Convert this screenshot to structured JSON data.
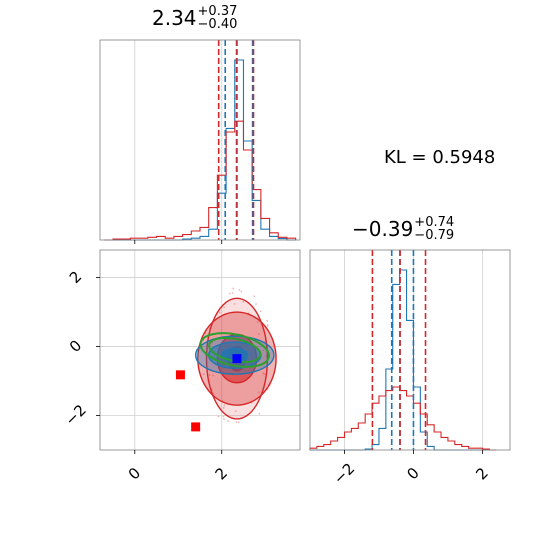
{
  "kl_text": "KL = 0.5948",
  "titles": {
    "p1": {
      "main": "2.34",
      "upper": "+0.37",
      "lower": "−0.40"
    },
    "p2": {
      "main": "−0.39",
      "upper": "+0.74",
      "lower": "−0.79"
    }
  },
  "colors": {
    "blue": "#1f77b4",
    "red": "#d62728",
    "green": "#2ca02c",
    "marker_red": "#ff0000",
    "marker_blue": "#0000ff"
  },
  "chart_data": [
    {
      "type": "histogram",
      "panel": "top-left marginal (parameter 1)",
      "xlim": [
        -0.8,
        3.8
      ],
      "x_ticks": [
        0,
        2
      ],
      "bin_centers": [
        -0.6,
        -0.4,
        -0.2,
        0.0,
        0.2,
        0.4,
        0.6,
        0.8,
        1.0,
        1.2,
        1.4,
        1.6,
        1.8,
        2.0,
        2.2,
        2.4,
        2.6,
        2.8,
        3.0,
        3.2,
        3.4,
        3.6
      ],
      "series": [
        {
          "color": "blue",
          "counts": [
            0,
            0,
            0,
            0,
            0,
            0,
            0,
            0,
            0,
            0.005,
            0.01,
            0.02,
            0.06,
            0.26,
            0.62,
            1.0,
            0.55,
            0.22,
            0.06,
            0.02,
            0.008,
            0
          ]
        },
        {
          "color": "red",
          "counts": [
            0,
            0.005,
            0.005,
            0.01,
            0.01,
            0.015,
            0.02,
            0.01,
            0.02,
            0.03,
            0.05,
            0.07,
            0.18,
            0.36,
            0.6,
            0.66,
            0.5,
            0.28,
            0.12,
            0.04,
            0.015,
            0.01
          ]
        }
      ],
      "quantile_lines": [
        {
          "color": "blue",
          "x": [
            2.08,
            2.34,
            2.71
          ]
        },
        {
          "color": "red",
          "x": [
            1.93,
            2.35,
            2.73
          ]
        }
      ]
    },
    {
      "type": "contour",
      "panel": "bottom-left joint (parameter 1 vs parameter 2)",
      "xlim": [
        -0.8,
        3.8
      ],
      "ylim": [
        -3.0,
        2.8
      ],
      "x_ticks": [
        0,
        2
      ],
      "y_ticks": [
        -2,
        0,
        2
      ],
      "contours": [
        {
          "color": "red",
          "filled": true,
          "cx": 2.35,
          "cy": -0.35,
          "levels": [
            [
              0.7,
              1.75
            ],
            [
              0.9,
              1.35
            ],
            [
              0.45,
              0.7
            ],
            [
              0.2,
              0.35
            ]
          ]
        },
        {
          "color": "blue",
          "filled": true,
          "cx": 2.3,
          "cy": -0.25,
          "levels": [
            [
              0.9,
              0.55
            ],
            [
              0.6,
              0.38
            ],
            [
              0.3,
              0.2
            ]
          ]
        },
        {
          "color": "green",
          "filled": false,
          "cx": 2.3,
          "cy": -0.1,
          "levels": [
            [
              0.8,
              0.45
            ],
            [
              0.6,
              0.32
            ]
          ]
        }
      ],
      "points": [
        {
          "color": "marker_red",
          "x": 1.05,
          "y": -0.82
        },
        {
          "color": "marker_red",
          "x": 1.4,
          "y": -2.33
        },
        {
          "color": "marker_blue",
          "x": 2.35,
          "y": -0.35
        }
      ]
    },
    {
      "type": "histogram",
      "panel": "bottom-right marginal (parameter 2)",
      "xlim": [
        -3.0,
        2.8
      ],
      "x_ticks": [
        -2,
        0,
        2
      ],
      "bin_centers": [
        -2.9,
        -2.7,
        -2.5,
        -2.3,
        -2.1,
        -1.9,
        -1.7,
        -1.5,
        -1.3,
        -1.1,
        -0.9,
        -0.7,
        -0.5,
        -0.3,
        -0.1,
        0.1,
        0.3,
        0.5,
        0.7,
        0.9,
        1.1,
        1.3,
        1.5,
        1.7,
        1.9,
        2.1,
        2.3
      ],
      "series": [
        {
          "color": "blue",
          "counts": [
            0,
            0,
            0,
            0,
            0,
            0,
            0,
            0,
            0.005,
            0.03,
            0.12,
            0.45,
            0.92,
            1.0,
            0.72,
            0.35,
            0.1,
            0.02,
            0,
            0,
            0,
            0,
            0,
            0,
            0,
            0,
            0
          ]
        },
        {
          "color": "red",
          "counts": [
            0.01,
            0.02,
            0.03,
            0.05,
            0.07,
            0.1,
            0.12,
            0.15,
            0.2,
            0.26,
            0.3,
            0.33,
            0.35,
            0.33,
            0.3,
            0.26,
            0.2,
            0.14,
            0.1,
            0.07,
            0.05,
            0.03,
            0.02,
            0.01,
            0.01,
            0.005,
            0
          ]
        }
      ],
      "quantile_lines": [
        {
          "color": "blue",
          "x": [
            -0.63,
            -0.39,
            0.0
          ]
        },
        {
          "color": "red",
          "x": [
            -1.19,
            -0.39,
            0.35
          ]
        }
      ]
    }
  ]
}
